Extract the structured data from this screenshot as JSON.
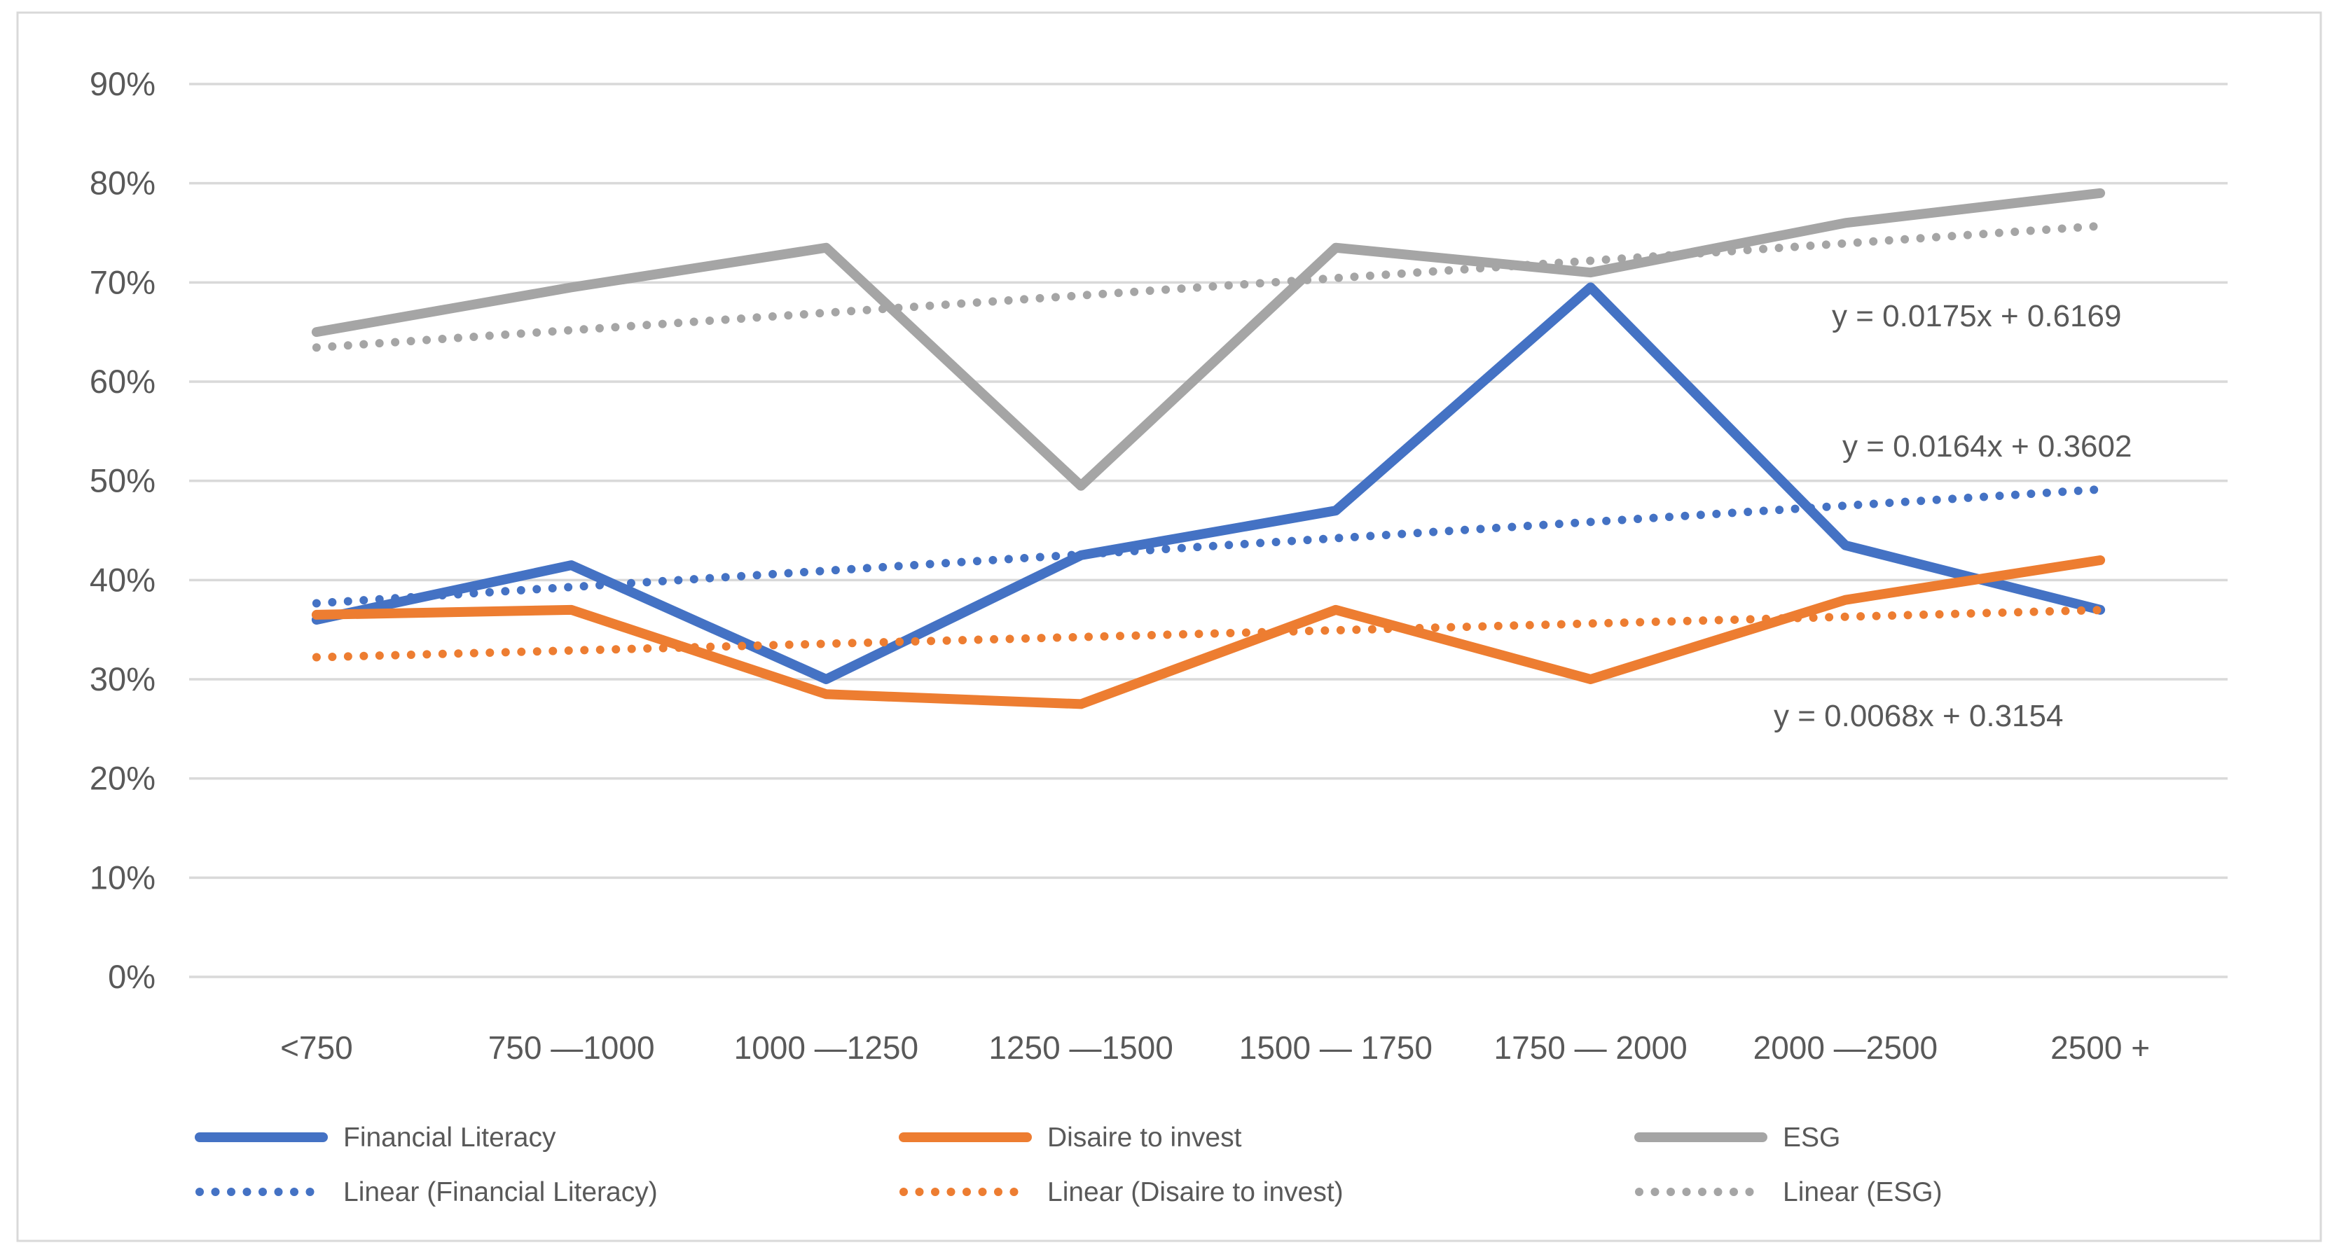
{
  "chart_data": {
    "type": "line",
    "categories": [
      "<750",
      "750 —1000",
      "1000 —1250",
      "1250 —1500",
      "1500 — 1750",
      "1750 — 2000",
      "2000 —2500",
      "2500 +"
    ],
    "series": [
      {
        "name": "Financial Literacy",
        "color": "#4472C4",
        "line_style": "solid",
        "values": [
          36,
          41.5,
          30,
          42.5,
          47,
          69.5,
          43.5,
          37
        ]
      },
      {
        "name": "Disaire to invest",
        "color": "#ED7D31",
        "line_style": "solid",
        "values": [
          36.5,
          37,
          28.5,
          27.5,
          37,
          30,
          38,
          42
        ]
      },
      {
        "name": "ESG",
        "color": "#A5A5A5",
        "line_style": "solid",
        "values": [
          65,
          69.5,
          73.5,
          49.5,
          73.5,
          71,
          76,
          79
        ]
      }
    ],
    "trendlines": [
      {
        "name": "Linear (Financial Literacy)",
        "color": "#4472C4",
        "line_style": "dotted",
        "slope": 0.0164,
        "intercept": 0.3602,
        "equation": "y = 0.0164x + 0.3602"
      },
      {
        "name": "Linear (Disaire to invest)",
        "color": "#ED7D31",
        "line_style": "dotted",
        "slope": 0.0068,
        "intercept": 0.3154,
        "equation": "y = 0.0068x + 0.3154"
      },
      {
        "name": "Linear (ESG)",
        "color": "#A5A5A5",
        "line_style": "dotted",
        "slope": 0.0175,
        "intercept": 0.6169,
        "equation": "y = 0.0175x + 0.6169"
      }
    ],
    "y_axis": {
      "min": 0,
      "max": 90,
      "step": 10,
      "tick_labels": [
        "0%",
        "10%",
        "20%",
        "30%",
        "40%",
        "50%",
        "60%",
        "70%",
        "80%",
        "90%"
      ]
    },
    "x_axis": {
      "tick_labels_same_as_categories": true
    },
    "legend": {
      "position": "bottom",
      "entries": [
        "Financial Literacy",
        "Disaire to invest",
        "ESG",
        "Linear (Financial Literacy)",
        "Linear (Disaire to invest)",
        "Linear (ESG)"
      ]
    },
    "grid": true,
    "ylim": [
      0,
      90
    ],
    "colors": {
      "gridline": "#D9D9D9",
      "border": "#D9D9D9",
      "axis_text": "#595959",
      "background": "#FFFFFF"
    }
  }
}
